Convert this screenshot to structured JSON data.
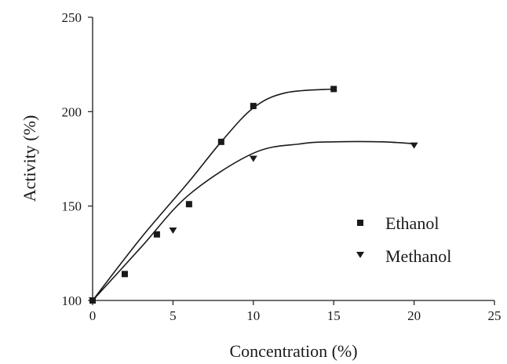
{
  "chart_data": {
    "type": "scatter",
    "xlabel": "Concentration (%)",
    "ylabel": "Activity (%)",
    "xlim": [
      0,
      25
    ],
    "ylim": [
      100,
      250
    ],
    "xticks": [
      0,
      5,
      10,
      15,
      20,
      25
    ],
    "yticks": [
      100,
      150,
      200,
      250
    ],
    "grid": false,
    "legend_position": "right",
    "series": [
      {
        "name": "Ethanol",
        "marker": "square",
        "color": "#1a1a1a",
        "points": [
          [
            0,
            100
          ],
          [
            2,
            114
          ],
          [
            4,
            135
          ],
          [
            6,
            151
          ],
          [
            8,
            184
          ],
          [
            10,
            203
          ],
          [
            15,
            212
          ]
        ],
        "trend": [
          [
            0,
            100
          ],
          [
            3,
            133
          ],
          [
            6,
            163
          ],
          [
            8,
            184
          ],
          [
            10,
            202
          ],
          [
            12,
            210
          ],
          [
            15,
            212
          ]
        ]
      },
      {
        "name": "Methanol",
        "marker": "triangle-down",
        "color": "#1a1a1a",
        "points": [
          [
            0,
            100
          ],
          [
            5,
            137
          ],
          [
            10,
            175
          ],
          [
            20,
            182
          ]
        ],
        "trend": [
          [
            0,
            100
          ],
          [
            3,
            128
          ],
          [
            6,
            156
          ],
          [
            10,
            178
          ],
          [
            13,
            183
          ],
          [
            15,
            184
          ],
          [
            18,
            184
          ],
          [
            20,
            183
          ]
        ]
      }
    ]
  }
}
